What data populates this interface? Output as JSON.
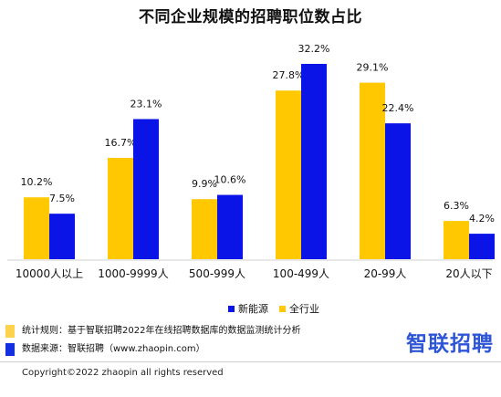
{
  "chart_data": {
    "type": "bar",
    "title": "不同企业规模的招聘职位数占比",
    "categories": [
      "10000人以上",
      "1000-9999人",
      "500-999人",
      "100-499人",
      "20-99人",
      "20人以下"
    ],
    "series": [
      {
        "name": "全行业",
        "values": [
          10.2,
          16.7,
          9.9,
          27.8,
          29.1,
          6.3
        ],
        "labels": [
          "10.2%",
          "16.7%",
          "9.9%",
          "27.8%",
          "29.1%",
          "6.3%"
        ],
        "color": "#FFC800"
      },
      {
        "name": "新能源",
        "values": [
          7.5,
          23.1,
          10.6,
          32.2,
          22.4,
          4.2
        ],
        "labels": [
          "7.5%",
          "23.1%",
          "10.6%",
          "32.2%",
          "22.4%",
          "4.2%"
        ],
        "color": "#0A14E6"
      }
    ],
    "ylim": [
      0,
      32.2
    ],
    "legend": {
      "position": "bottom",
      "order": [
        "新能源",
        "全行业"
      ]
    }
  },
  "notes": [
    {
      "text": "统计规则：基于智联招聘2022年在线招聘数据库的数据监测统计分析",
      "color": "#FFD24D"
    },
    {
      "text": "数据来源：智联招聘（www.zhaopin.com）",
      "color": "#1230E0"
    }
  ],
  "logo": "智联招聘",
  "copyright": "Copyright©2022 zhaopin all rights reserved"
}
